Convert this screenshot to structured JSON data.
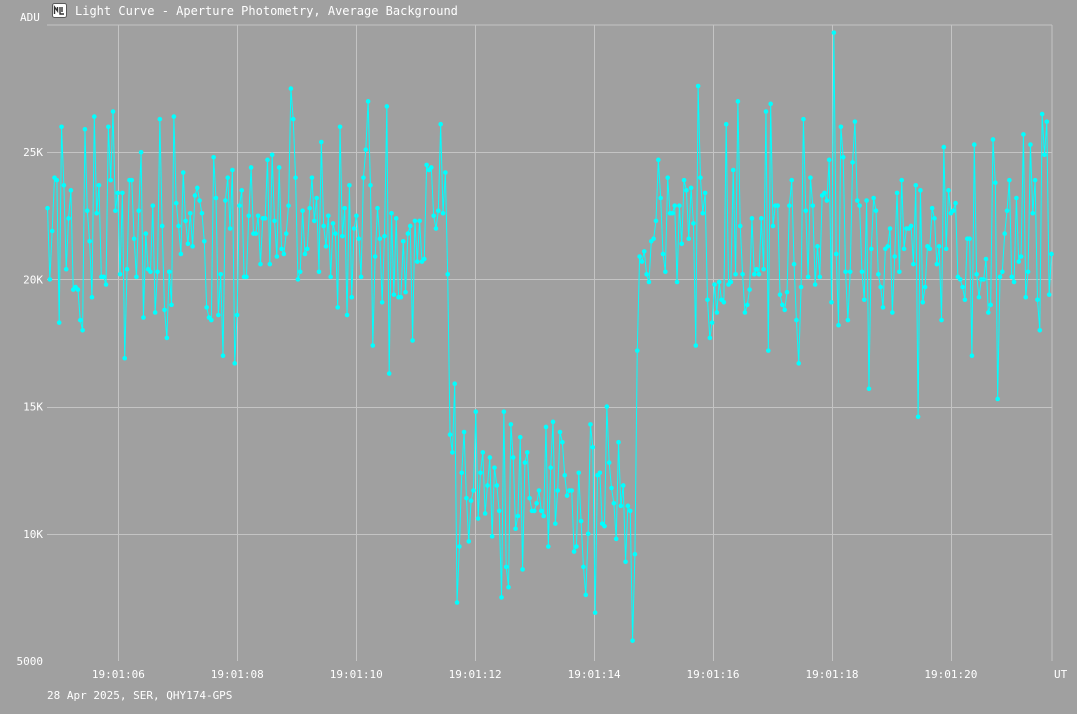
{
  "window": {
    "title": "Light Curve - Aperture Photometry, Average Background",
    "icon": "light-curve-app-icon"
  },
  "footer": {
    "caption": "28 Apr 2025, SER, QHY174-GPS"
  },
  "colors": {
    "background": "#a0a0a0",
    "grid": "#c4c4c4",
    "series": "#00ffff",
    "text": "#ffffff"
  },
  "chart_data": {
    "type": "line",
    "title": "",
    "xlabel": "UT",
    "ylabel": "ADU",
    "xlim": [
      "19:01:04.8",
      "19:01:21.7"
    ],
    "ylim": [
      5000,
      30000
    ],
    "grid": true,
    "marker": "circle",
    "x_ticks": [
      "19:01:06",
      "19:01:08",
      "19:01:10",
      "19:01:12",
      "19:01:14",
      "19:01:16",
      "19:01:18",
      "19:01:20"
    ],
    "y_ticks": [
      {
        "value": 5000,
        "label": "5000"
      },
      {
        "value": 10000,
        "label": "10K"
      },
      {
        "value": 15000,
        "label": "15K"
      },
      {
        "value": 20000,
        "label": "20K"
      },
      {
        "value": 25000,
        "label": "25K"
      }
    ],
    "series": [
      {
        "values": [
          22800,
          20000,
          21900,
          24000,
          23900,
          18300,
          26000,
          23700,
          20400,
          22400,
          23500,
          19600,
          19700,
          19600,
          18400,
          18000,
          25900,
          22700,
          21500,
          19300,
          26400,
          22600,
          23700,
          20100,
          20100,
          19800,
          26000,
          23900,
          26600,
          22700,
          23400,
          20200,
          23400,
          16900,
          20400,
          23900,
          23900,
          21600,
          20100,
          22700,
          25000,
          18500,
          21800,
          20400,
          20300,
          22900,
          18700,
          20300,
          26300,
          22100,
          18800,
          17700,
          20300,
          19000,
          26400,
          23000,
          22100,
          21000,
          24200,
          22300,
          21400,
          22600,
          21300,
          23300,
          23600,
          23100,
          22600,
          21500,
          18900,
          18500,
          18400,
          24800,
          23200,
          18600,
          20200,
          17000,
          23100,
          24000,
          22000,
          24300,
          16700,
          18600,
          22900,
          23500,
          20100,
          20100,
          22500,
          24400,
          21800,
          21800,
          22500,
          20600,
          22400,
          22400,
          24700,
          20600,
          24900,
          22300,
          20900,
          24400,
          21200,
          21000,
          21800,
          22900,
          27500,
          26300,
          24000,
          20000,
          20300,
          22700,
          21000,
          21200,
          22800,
          24000,
          22300,
          23200,
          20300,
          25400,
          22100,
          21300,
          22500,
          20100,
          22200,
          21800,
          18900,
          26000,
          21700,
          22800,
          18600,
          23700,
          19300,
          22000,
          22500,
          21600,
          20100,
          24000,
          25100,
          27000,
          23700,
          17400,
          20900,
          22800,
          21600,
          19100,
          21700,
          26800,
          16300,
          22600,
          19400,
          22400,
          19300,
          19300,
          21500,
          19500,
          21800,
          22100,
          17600,
          22300,
          20700,
          22300,
          20700,
          20800,
          24500,
          24300,
          24400,
          22500,
          22000,
          22700,
          26100,
          22600,
          24200,
          20200,
          13900,
          13200,
          15900,
          7300,
          9500,
          12400,
          14000,
          11400,
          9700,
          11300,
          11700,
          14800,
          10600,
          12400,
          13200,
          10800,
          11900,
          13000,
          9900,
          12600,
          11900,
          10900,
          7500,
          14800,
          8700,
          7900,
          14300,
          13000,
          10200,
          10700,
          13800,
          8600,
          12800,
          13200,
          11400,
          10900,
          10900,
          11200,
          11700,
          10900,
          10700,
          14200,
          9500,
          12600,
          14400,
          10400,
          11700,
          14000,
          13600,
          12300,
          11500,
          11700,
          11700,
          9300,
          9500,
          12400,
          10500,
          8700,
          7600,
          10000,
          14300,
          13400,
          6900,
          12300,
          12400,
          10400,
          10300,
          15000,
          12800,
          11800,
          11200,
          9800,
          13600,
          11100,
          11900,
          8900,
          11100,
          10900,
          5800,
          9200,
          17200,
          20900,
          20700,
          21100,
          20200,
          19900,
          21500,
          21600,
          22300,
          24700,
          23200,
          21000,
          20300,
          24000,
          22600,
          22600,
          22900,
          19900,
          22900,
          21400,
          23900,
          23500,
          21600,
          23600,
          22200,
          17400,
          27600,
          24000,
          22600,
          23400,
          19200,
          17700,
          18300,
          19800,
          18700,
          19900,
          19200,
          19100,
          26100,
          19800,
          19900,
          24300,
          20200,
          27000,
          22100,
          20200,
          18700,
          19000,
          19600,
          22400,
          20200,
          20400,
          20200,
          22400,
          20400,
          26600,
          17200,
          26900,
          22100,
          22900,
          22900,
          19400,
          19000,
          18800,
          19500,
          22900,
          23900,
          20600,
          18400,
          16700,
          19700,
          26300,
          22700,
          20100,
          24000,
          22900,
          19800,
          21300,
          20100,
          23300,
          23400,
          23100,
          24700,
          19100,
          29700,
          21000,
          18200,
          26000,
          24800,
          20300,
          18400,
          20300,
          24600,
          26200,
          23100,
          22900,
          20300,
          19200,
          23100,
          15700,
          21200,
          23200,
          22700,
          20200,
          19700,
          18900,
          21200,
          21300,
          22000,
          18700,
          20900,
          23400,
          20300,
          23900,
          21200,
          22000,
          22000,
          22100,
          20600,
          23700,
          14600,
          23500,
          19100,
          19700,
          21300,
          21200,
          22800,
          22400,
          20600,
          21300,
          18400,
          25200,
          21200,
          23500,
          22600,
          22700,
          23000,
          20100,
          20000,
          19700,
          19200,
          21600,
          21600,
          17000,
          25300,
          20200,
          19300,
          20000,
          20000,
          20800,
          18700,
          19000,
          25500,
          23800,
          15300,
          20100,
          20300,
          21800,
          22700,
          23900,
          20100,
          19900,
          23200,
          20700,
          20900,
          25700,
          19300,
          20300,
          25300,
          22600,
          23900,
          19200,
          18000,
          26500,
          24900,
          26200,
          19400,
          21000
        ]
      }
    ]
  }
}
